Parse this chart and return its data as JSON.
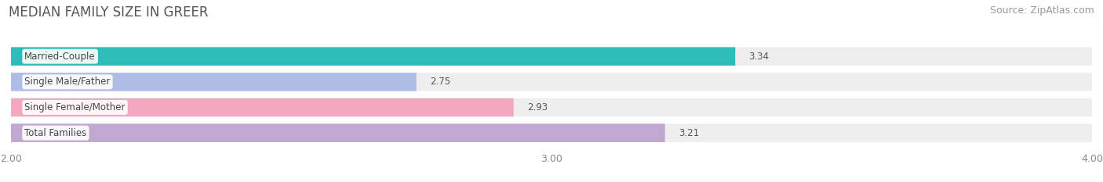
{
  "title": "MEDIAN FAMILY SIZE IN GREER",
  "source": "Source: ZipAtlas.com",
  "categories": [
    "Married-Couple",
    "Single Male/Father",
    "Single Female/Mother",
    "Total Families"
  ],
  "values": [
    3.34,
    2.75,
    2.93,
    3.21
  ],
  "bar_colors": [
    "#2dbdb8",
    "#b0bce8",
    "#f4a8c0",
    "#c0a8d0"
  ],
  "xlim": [
    2.0,
    4.0
  ],
  "xticks": [
    2.0,
    3.0,
    4.0
  ],
  "xtick_labels": [
    "2.00",
    "3.00",
    "4.00"
  ],
  "background_color": "#ffffff",
  "bar_background_color": "#eeeeee",
  "title_fontsize": 12,
  "source_fontsize": 9,
  "label_fontsize": 8.5,
  "value_fontsize": 8.5
}
